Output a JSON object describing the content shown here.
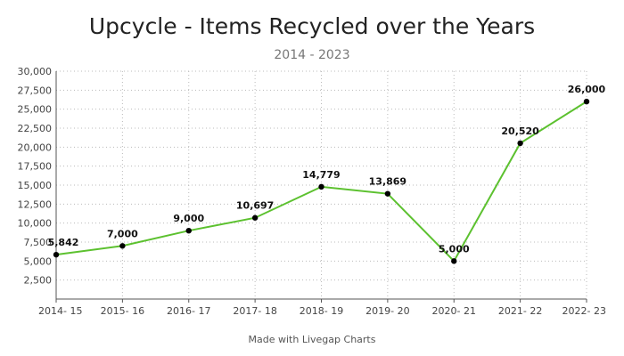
{
  "chart_data": {
    "type": "line",
    "title": "Upcycle - Items Recycled over the Years",
    "subtitle": "2014 - 2023",
    "categories": [
      "2014- 15",
      "2015- 16",
      "2016- 17",
      "2017- 18",
      "2018- 19",
      "2019- 20",
      "2020- 21",
      "2021- 22",
      "2022- 23"
    ],
    "series": [
      {
        "values": [
          5842,
          7000,
          9000,
          10697,
          14779,
          13869,
          5000,
          20520,
          26000
        ],
        "labels": [
          "5,842",
          "7,000",
          "9,000",
          "10,697",
          "14,779",
          "13,869",
          "5,000",
          "20,520",
          "26,000"
        ]
      }
    ],
    "ylim": [
      0,
      30000
    ],
    "yticks": [
      2500,
      5000,
      7500,
      10000,
      12500,
      15000,
      17500,
      20000,
      22500,
      25000,
      27500,
      30000
    ],
    "ytick_labels": [
      "2,500",
      "5,000",
      "7,500",
      "10,000",
      "12,500",
      "15,000",
      "17,500",
      "20,000",
      "22,500",
      "25,000",
      "27,500",
      "30,000"
    ],
    "grid": true,
    "line_color": "#5cc12f",
    "marker_color": "#000000"
  },
  "footer": "Made with Livegap Charts"
}
